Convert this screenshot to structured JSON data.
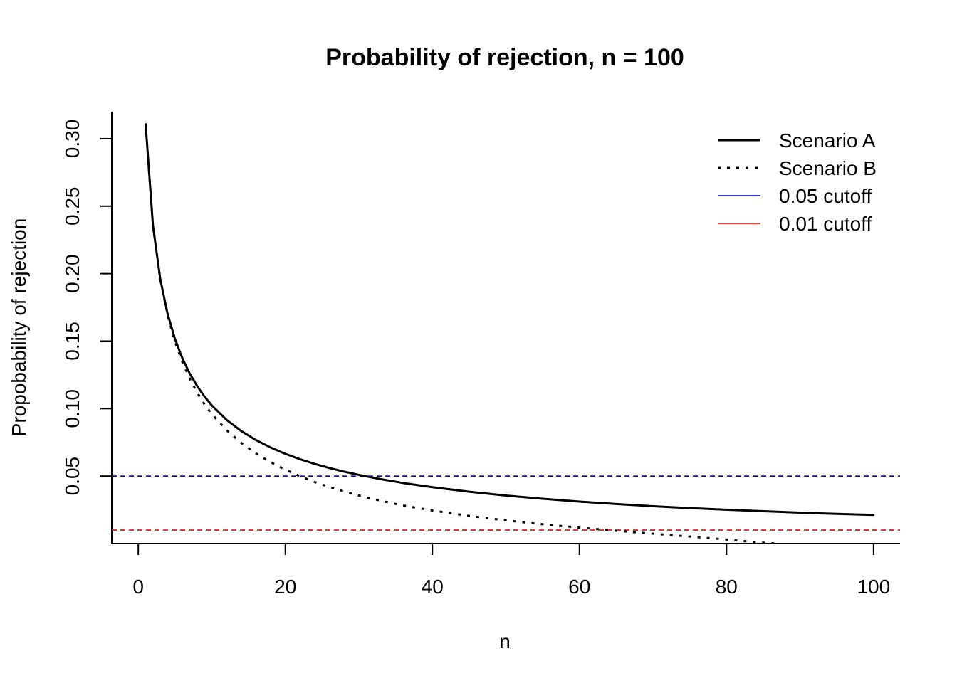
{
  "chart_data": {
    "type": "line",
    "title": "Probability of rejection, n = 100",
    "xlabel": "n",
    "ylabel": "Propobability of rejection",
    "xlim": [
      -3.6,
      103.6
    ],
    "ylim": [
      0.0,
      0.32
    ],
    "x_ticks": [
      0,
      20,
      40,
      60,
      80,
      100
    ],
    "x_tick_labels": [
      "0",
      "20",
      "40",
      "60",
      "80",
      "100"
    ],
    "y_ticks": [
      0.05,
      0.1,
      0.15,
      0.2,
      0.25,
      0.3
    ],
    "y_tick_labels": [
      "0.05",
      "0.10",
      "0.15",
      "0.20",
      "0.25",
      "0.30"
    ],
    "grid": false,
    "legend_position": "top-right",
    "series": [
      {
        "name": "Scenario A",
        "style": "solid",
        "width": 3,
        "color": "#000000",
        "x": [
          1,
          2,
          3,
          4,
          5,
          6,
          7,
          8,
          9,
          10,
          12,
          14,
          16,
          18,
          20,
          22,
          24,
          26,
          28,
          30,
          33,
          36,
          40,
          45,
          50,
          55,
          60,
          65,
          70,
          75,
          80,
          85,
          90,
          95,
          100
        ],
        "y": [
          0.3108,
          0.2355,
          0.1958,
          0.17,
          0.1515,
          0.1373,
          0.126,
          0.1168,
          0.109,
          0.1024,
          0.0917,
          0.0834,
          0.0767,
          0.0712,
          0.0665,
          0.0625,
          0.059,
          0.056,
          0.0533,
          0.0509,
          0.0477,
          0.0449,
          0.0418,
          0.0384,
          0.0356,
          0.0332,
          0.0311,
          0.0293,
          0.0277,
          0.0263,
          0.0251,
          0.024,
          0.0229,
          0.022,
          0.0212
        ]
      },
      {
        "name": "Scenario B",
        "style": "dotted",
        "width": 3,
        "color": "#000000",
        "x": [
          1,
          2,
          3,
          4,
          5,
          6,
          7,
          8,
          9,
          10,
          12,
          14,
          16,
          18,
          20,
          22,
          24,
          26,
          28,
          30,
          33,
          36,
          40,
          45,
          50,
          55,
          60,
          65,
          70,
          75,
          80,
          84,
          87
        ],
        "y": [
          0.3108,
          0.2355,
          0.1955,
          0.169,
          0.1495,
          0.1345,
          0.1223,
          0.112,
          0.1033,
          0.096,
          0.0841,
          0.0746,
          0.0668,
          0.0603,
          0.0548,
          0.0499,
          0.0456,
          0.0419,
          0.0386,
          0.0356,
          0.0317,
          0.0283,
          0.0245,
          0.0205,
          0.0172,
          0.0143,
          0.0118,
          0.0095,
          0.0073,
          0.0052,
          0.003,
          0.001,
          0.0
        ]
      },
      {
        "name": "0.05 cutoff",
        "style": "dashed",
        "width": 1.6,
        "color": "#0000cc",
        "y_value": 0.05
      },
      {
        "name": "0.01 cutoff",
        "style": "dashed",
        "width": 1.6,
        "color": "#ee0000",
        "y_value": 0.01
      }
    ]
  }
}
